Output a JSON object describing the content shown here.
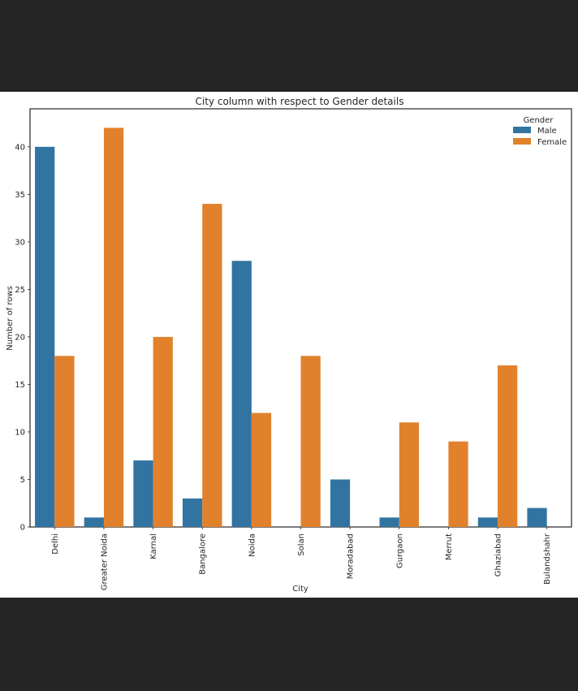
{
  "chart_data": {
    "type": "bar",
    "title": "City column with respect to Gender details",
    "xlabel": "City",
    "ylabel": "Number of rows",
    "categories": [
      "Delhi",
      "Greater Noida",
      "Karnal",
      "Bangalore",
      "Noida",
      "Solan",
      "Moradabad",
      "Gurgaon",
      "Merrut",
      "Ghaziabad",
      "Bulandshahr"
    ],
    "series": [
      {
        "name": "Male",
        "color": "#3274a1",
        "values": [
          40,
          1,
          7,
          3,
          28,
          0,
          5,
          1,
          0,
          1,
          2
        ]
      },
      {
        "name": "Female",
        "color": "#e1812c",
        "values": [
          18,
          42,
          20,
          34,
          12,
          18,
          0,
          11,
          9,
          17,
          0
        ]
      }
    ],
    "ylim": [
      0,
      44
    ],
    "yticks": [
      0,
      5,
      10,
      15,
      20,
      25,
      30,
      35,
      40
    ],
    "grid": false,
    "legend": {
      "title": "Gender",
      "placement": "top-right"
    }
  }
}
